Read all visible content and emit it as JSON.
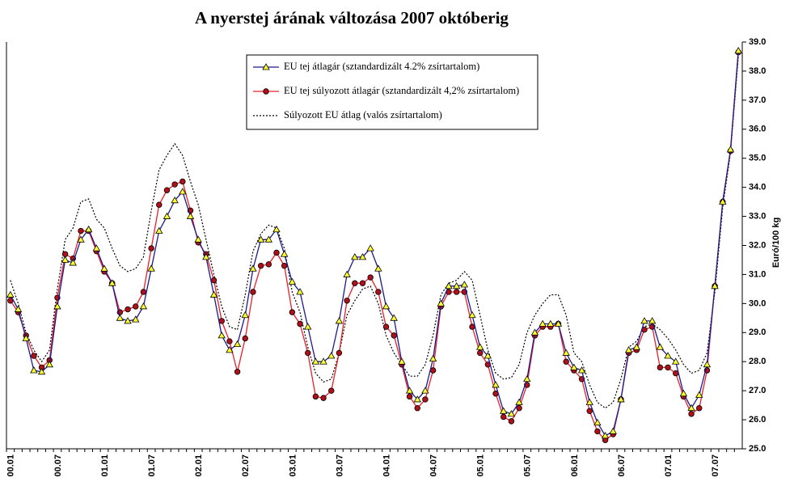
{
  "chart_data": {
    "type": "line",
    "title": "A nyerstej árának változása 2007 októberig",
    "y_axis_label": "Euró/100 kg",
    "categories": [
      "00.01",
      null,
      null,
      null,
      null,
      null,
      "00.07",
      null,
      null,
      null,
      null,
      null,
      "01.01",
      null,
      null,
      null,
      null,
      null,
      "01.07",
      null,
      null,
      null,
      null,
      null,
      "02.01",
      null,
      null,
      null,
      null,
      null,
      "02.07",
      null,
      null,
      null,
      null,
      null,
      "03.01",
      null,
      null,
      null,
      null,
      null,
      "03.07",
      null,
      null,
      null,
      null,
      null,
      "04.01",
      null,
      null,
      null,
      null,
      null,
      "04.07",
      null,
      null,
      null,
      null,
      null,
      "05.01",
      null,
      null,
      null,
      null,
      null,
      "05.07",
      null,
      null,
      null,
      null,
      null,
      "06.01",
      null,
      null,
      null,
      null,
      null,
      "06.07",
      null,
      null,
      null,
      null,
      null,
      "07.01",
      null,
      null,
      null,
      null,
      null,
      "07.07",
      null,
      null,
      null
    ],
    "series": [
      {
        "name": "EU tej átlagár (sztandardizált 4.2% zsírtartalom)",
        "color": "#1a1a8c",
        "marker": "triangle",
        "marker_color": "#ffff33",
        "values": [
          30.3,
          29.8,
          28.8,
          27.7,
          27.65,
          27.9,
          29.9,
          31.5,
          31.4,
          32.2,
          32.55,
          31.9,
          31.2,
          30.7,
          29.5,
          29.4,
          29.45,
          29.9,
          31.2,
          32.5,
          33.0,
          33.55,
          33.85,
          33.0,
          32.2,
          31.6,
          30.3,
          28.9,
          28.4,
          28.6,
          29.6,
          31.2,
          32.2,
          32.2,
          32.55,
          31.7,
          30.75,
          30.4,
          29.2,
          28.0,
          28.0,
          28.2,
          29.4,
          31.0,
          31.6,
          31.6,
          31.9,
          31.2,
          29.9,
          29.5,
          28.0,
          27.0,
          26.7,
          27.0,
          28.1,
          30.0,
          30.6,
          30.6,
          30.65,
          29.6,
          28.5,
          28.2,
          27.2,
          26.3,
          26.2,
          26.6,
          27.4,
          29.0,
          29.3,
          29.3,
          29.3,
          28.3,
          27.8,
          27.7,
          26.6,
          25.9,
          25.45,
          25.6,
          26.7,
          28.4,
          28.5,
          29.4,
          29.4,
          28.5,
          28.2,
          28.0,
          26.9,
          26.4,
          26.85,
          27.9,
          30.6,
          33.5,
          35.3,
          38.7
        ]
      },
      {
        "name": "EU tej súlyozott átlagár (sztandardizált 4,2% zsírtartalom)",
        "color": "#e8202a",
        "marker": "circle",
        "marker_color": "#b01018",
        "values": [
          30.1,
          29.7,
          28.9,
          28.2,
          27.8,
          28.05,
          30.2,
          31.7,
          31.55,
          32.5,
          32.5,
          31.8,
          31.1,
          30.7,
          29.7,
          29.8,
          29.9,
          30.4,
          31.9,
          33.4,
          33.9,
          34.1,
          34.2,
          33.2,
          32.1,
          31.7,
          30.8,
          29.4,
          28.7,
          27.65,
          28.8,
          30.4,
          31.3,
          31.35,
          31.75,
          31.3,
          29.7,
          29.3,
          28.3,
          26.8,
          26.75,
          27.0,
          28.3,
          30.1,
          30.7,
          30.7,
          30.9,
          30.4,
          29.2,
          28.9,
          27.9,
          26.8,
          26.4,
          26.7,
          27.7,
          29.9,
          30.4,
          30.4,
          30.4,
          29.2,
          28.3,
          27.9,
          26.9,
          26.1,
          25.95,
          26.4,
          27.2,
          28.9,
          29.2,
          29.2,
          29.3,
          28.0,
          27.7,
          27.4,
          26.3,
          25.6,
          25.3,
          25.5,
          26.7,
          28.3,
          28.4,
          29.1,
          29.2,
          27.8,
          27.8,
          27.6,
          26.8,
          26.2,
          26.4,
          27.7,
          30.6,
          33.5,
          35.25,
          38.65
        ]
      },
      {
        "name": "Súlyozott EU átlag (valós zsírtartalom)",
        "color": "#000000",
        "dash": "dotted",
        "values": [
          30.8,
          30.0,
          29.0,
          28.4,
          28.0,
          28.4,
          30.5,
          32.2,
          32.6,
          33.5,
          33.6,
          32.9,
          32.6,
          31.9,
          31.3,
          31.1,
          31.2,
          31.6,
          33.2,
          34.6,
          35.1,
          35.5,
          35.1,
          34.2,
          33.4,
          32.2,
          31.0,
          29.9,
          29.2,
          29.1,
          30.3,
          31.8,
          32.4,
          32.7,
          32.6,
          31.9,
          30.4,
          29.7,
          28.5,
          27.6,
          27.3,
          27.4,
          28.3,
          29.6,
          30.1,
          30.5,
          30.6,
          30.0,
          28.9,
          28.3,
          27.9,
          27.5,
          27.5,
          27.9,
          28.9,
          30.3,
          30.7,
          30.8,
          31.1,
          30.8,
          29.6,
          28.4,
          27.6,
          27.4,
          27.45,
          27.9,
          29.0,
          29.6,
          30.0,
          30.3,
          30.3,
          29.6,
          28.3,
          28.0,
          27.2,
          26.6,
          26.4,
          26.6,
          27.4,
          28.5,
          28.7,
          29.2,
          29.3,
          29.1,
          28.8,
          28.4,
          27.9,
          27.6,
          27.7,
          28.3,
          30.4,
          33.3,
          35.2,
          38.5
        ]
      }
    ],
    "ylim": [
      25,
      39
    ],
    "yticks": [
      {
        "value": 25,
        "label": "25.0"
      },
      {
        "value": 26,
        "label": "26.0"
      },
      {
        "value": 27,
        "label": "27.0"
      },
      {
        "value": 28,
        "label": "28.0"
      },
      {
        "value": 29,
        "label": "29.0"
      },
      {
        "value": 30,
        "label": "30.0"
      },
      {
        "value": 31,
        "label": "31.0"
      },
      {
        "value": 32,
        "label": "32.0"
      },
      {
        "value": 33,
        "label": "33.0"
      },
      {
        "value": 34,
        "label": "34.0"
      },
      {
        "value": 35,
        "label": "35.0"
      },
      {
        "value": 36,
        "label": "36.0"
      },
      {
        "value": 37,
        "label": "37.0"
      },
      {
        "value": 38,
        "label": "38.0"
      },
      {
        "value": 39,
        "label": "39.0"
      }
    ],
    "y_axis_side": "right",
    "grid": false,
    "legend": "top"
  }
}
